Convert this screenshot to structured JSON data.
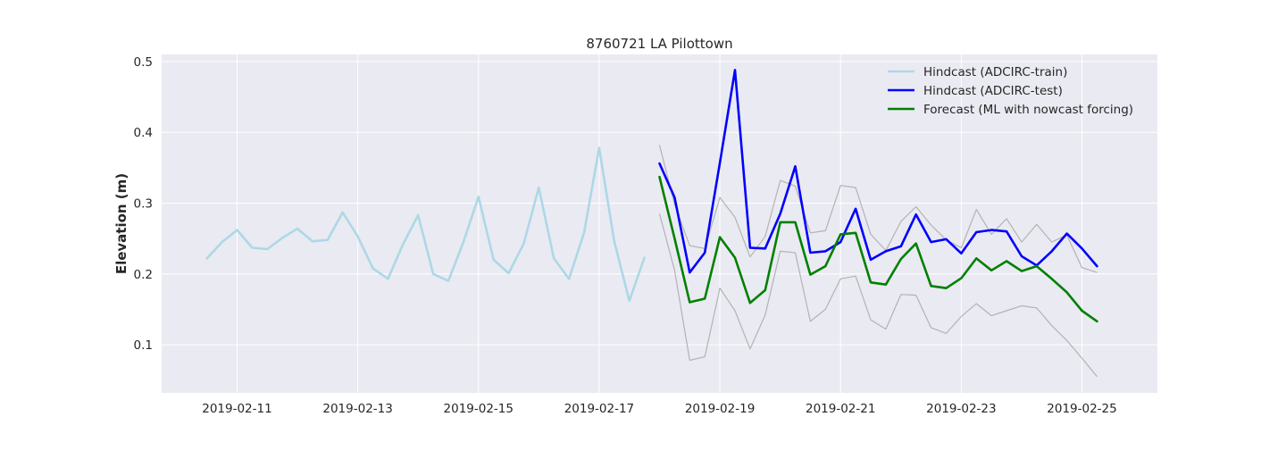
{
  "chart_data": {
    "type": "line",
    "title": "8760721 LA Pilottown",
    "xlabel": "",
    "ylabel": "Elevation (m)",
    "xlim": [
      "2019-02-09T18:00",
      "2019-02-26T06:00"
    ],
    "ylim": [
      0.032,
      0.51
    ],
    "x_ticks": [
      "2019-02-11",
      "2019-02-13",
      "2019-02-15",
      "2019-02-17",
      "2019-02-19",
      "2019-02-21",
      "2019-02-23",
      "2019-02-25"
    ],
    "y_ticks": [
      0.1,
      0.2,
      0.3,
      0.4,
      0.5
    ],
    "y_tick_labels": [
      "0.1",
      "0.2",
      "0.3",
      "0.4",
      "0.5"
    ],
    "grid": true,
    "legend_position": "top-right",
    "series": [
      {
        "name": "Hindcast (ADCIRC-train)",
        "color": "#add8e6",
        "x": [
          "2019-02-10T12:00",
          "2019-02-10T18:00",
          "2019-02-11T00:00",
          "2019-02-11T06:00",
          "2019-02-11T12:00",
          "2019-02-11T18:00",
          "2019-02-12T00:00",
          "2019-02-12T06:00",
          "2019-02-12T12:00",
          "2019-02-12T18:00",
          "2019-02-13T00:00",
          "2019-02-13T06:00",
          "2019-02-13T12:00",
          "2019-02-13T18:00",
          "2019-02-14T00:00",
          "2019-02-14T06:00",
          "2019-02-14T12:00",
          "2019-02-14T18:00",
          "2019-02-15T00:00",
          "2019-02-15T06:00",
          "2019-02-15T12:00",
          "2019-02-15T18:00",
          "2019-02-16T00:00",
          "2019-02-16T06:00",
          "2019-02-16T12:00",
          "2019-02-16T18:00",
          "2019-02-17T00:00",
          "2019-02-17T06:00",
          "2019-02-17T12:00",
          "2019-02-17T18:00"
        ],
        "values": [
          0.222,
          0.245,
          0.262,
          0.237,
          0.235,
          0.251,
          0.264,
          0.246,
          0.248,
          0.287,
          0.253,
          0.208,
          0.193,
          0.242,
          0.283,
          0.2,
          0.19,
          0.245,
          0.309,
          0.22,
          0.201,
          0.243,
          0.322,
          0.222,
          0.193,
          0.258,
          0.378,
          0.246,
          0.162,
          0.223
        ]
      },
      {
        "name": "Hindcast (ADCIRC-test)",
        "color": "#0000ff",
        "x": [
          "2019-02-18T00:00",
          "2019-02-18T06:00",
          "2019-02-18T12:00",
          "2019-02-18T18:00",
          "2019-02-19T00:00",
          "2019-02-19T06:00",
          "2019-02-19T12:00",
          "2019-02-19T18:00",
          "2019-02-20T00:00",
          "2019-02-20T06:00",
          "2019-02-20T12:00",
          "2019-02-20T18:00",
          "2019-02-21T00:00",
          "2019-02-21T06:00",
          "2019-02-21T12:00",
          "2019-02-21T18:00",
          "2019-02-22T00:00",
          "2019-02-22T06:00",
          "2019-02-22T12:00",
          "2019-02-22T18:00",
          "2019-02-23T00:00",
          "2019-02-23T06:00",
          "2019-02-23T12:00",
          "2019-02-23T18:00",
          "2019-02-24T00:00",
          "2019-02-24T06:00",
          "2019-02-24T12:00",
          "2019-02-24T18:00",
          "2019-02-25T00:00",
          "2019-02-25T06:00"
        ],
        "values": [
          0.356,
          0.308,
          0.202,
          0.23,
          0.357,
          0.488,
          0.237,
          0.236,
          0.285,
          0.352,
          0.23,
          0.232,
          0.245,
          0.292,
          0.22,
          0.232,
          0.239,
          0.284,
          0.245,
          0.249,
          0.229,
          0.259,
          0.262,
          0.26,
          0.225,
          0.212,
          0.232,
          0.257,
          0.236,
          0.211
        ]
      },
      {
        "name": "Forecast (ML with nowcast forcing)",
        "color": "#008000",
        "x": [
          "2019-02-18T00:00",
          "2019-02-18T06:00",
          "2019-02-18T12:00",
          "2019-02-18T18:00",
          "2019-02-19T00:00",
          "2019-02-19T06:00",
          "2019-02-19T12:00",
          "2019-02-19T18:00",
          "2019-02-20T00:00",
          "2019-02-20T06:00",
          "2019-02-20T12:00",
          "2019-02-20T18:00",
          "2019-02-21T00:00",
          "2019-02-21T06:00",
          "2019-02-21T12:00",
          "2019-02-21T18:00",
          "2019-02-22T00:00",
          "2019-02-22T06:00",
          "2019-02-22T12:00",
          "2019-02-22T18:00",
          "2019-02-23T00:00",
          "2019-02-23T06:00",
          "2019-02-23T12:00",
          "2019-02-23T18:00",
          "2019-02-24T00:00",
          "2019-02-24T06:00",
          "2019-02-24T12:00",
          "2019-02-24T18:00",
          "2019-02-25T00:00",
          "2019-02-25T06:00"
        ],
        "values": [
          0.337,
          0.25,
          0.16,
          0.165,
          0.252,
          0.223,
          0.159,
          0.177,
          0.273,
          0.273,
          0.199,
          0.211,
          0.256,
          0.258,
          0.188,
          0.185,
          0.221,
          0.243,
          0.183,
          0.18,
          0.194,
          0.222,
          0.205,
          0.218,
          0.204,
          0.211,
          0.193,
          0.174,
          0.148,
          0.133
        ]
      }
    ],
    "bands": [
      {
        "role": "upper",
        "color": "#b3b3b3",
        "x": [
          "2019-02-18T00:00",
          "2019-02-18T06:00",
          "2019-02-18T12:00",
          "2019-02-18T18:00",
          "2019-02-19T00:00",
          "2019-02-19T06:00",
          "2019-02-19T12:00",
          "2019-02-19T18:00",
          "2019-02-20T00:00",
          "2019-02-20T06:00",
          "2019-02-20T12:00",
          "2019-02-20T18:00",
          "2019-02-21T00:00",
          "2019-02-21T06:00",
          "2019-02-21T12:00",
          "2019-02-21T18:00",
          "2019-02-22T00:00",
          "2019-02-22T06:00",
          "2019-02-22T12:00",
          "2019-02-22T18:00",
          "2019-02-23T00:00",
          "2019-02-23T06:00",
          "2019-02-23T12:00",
          "2019-02-23T18:00",
          "2019-02-24T00:00",
          "2019-02-24T06:00",
          "2019-02-24T12:00",
          "2019-02-24T18:00",
          "2019-02-25T00:00",
          "2019-02-25T06:00"
        ],
        "values": [
          0.382,
          0.298,
          0.24,
          0.236,
          0.308,
          0.28,
          0.224,
          0.253,
          0.332,
          0.324,
          0.258,
          0.261,
          0.325,
          0.322,
          0.256,
          0.233,
          0.274,
          0.295,
          0.269,
          0.248,
          0.237,
          0.291,
          0.256,
          0.278,
          0.245,
          0.27,
          0.245,
          0.255,
          0.209,
          0.202
        ]
      },
      {
        "role": "lower",
        "color": "#b3b3b3",
        "x": [
          "2019-02-18T00:00",
          "2019-02-18T06:00",
          "2019-02-18T12:00",
          "2019-02-18T18:00",
          "2019-02-19T00:00",
          "2019-02-19T06:00",
          "2019-02-19T12:00",
          "2019-02-19T18:00",
          "2019-02-20T00:00",
          "2019-02-20T06:00",
          "2019-02-20T12:00",
          "2019-02-20T18:00",
          "2019-02-21T00:00",
          "2019-02-21T06:00",
          "2019-02-21T12:00",
          "2019-02-21T18:00",
          "2019-02-22T00:00",
          "2019-02-22T06:00",
          "2019-02-22T12:00",
          "2019-02-22T18:00",
          "2019-02-23T00:00",
          "2019-02-23T06:00",
          "2019-02-23T12:00",
          "2019-02-23T18:00",
          "2019-02-24T00:00",
          "2019-02-24T06:00",
          "2019-02-24T12:00",
          "2019-02-24T18:00",
          "2019-02-25T00:00",
          "2019-02-25T06:00"
        ],
        "values": [
          0.285,
          0.205,
          0.078,
          0.083,
          0.18,
          0.148,
          0.094,
          0.142,
          0.232,
          0.23,
          0.133,
          0.15,
          0.193,
          0.197,
          0.135,
          0.122,
          0.171,
          0.17,
          0.124,
          0.116,
          0.14,
          0.158,
          0.141,
          0.148,
          0.155,
          0.152,
          0.127,
          0.106,
          0.081,
          0.055
        ]
      }
    ]
  },
  "colors": {
    "plot_background": "#eaeaf2",
    "grid": "#ffffff"
  }
}
